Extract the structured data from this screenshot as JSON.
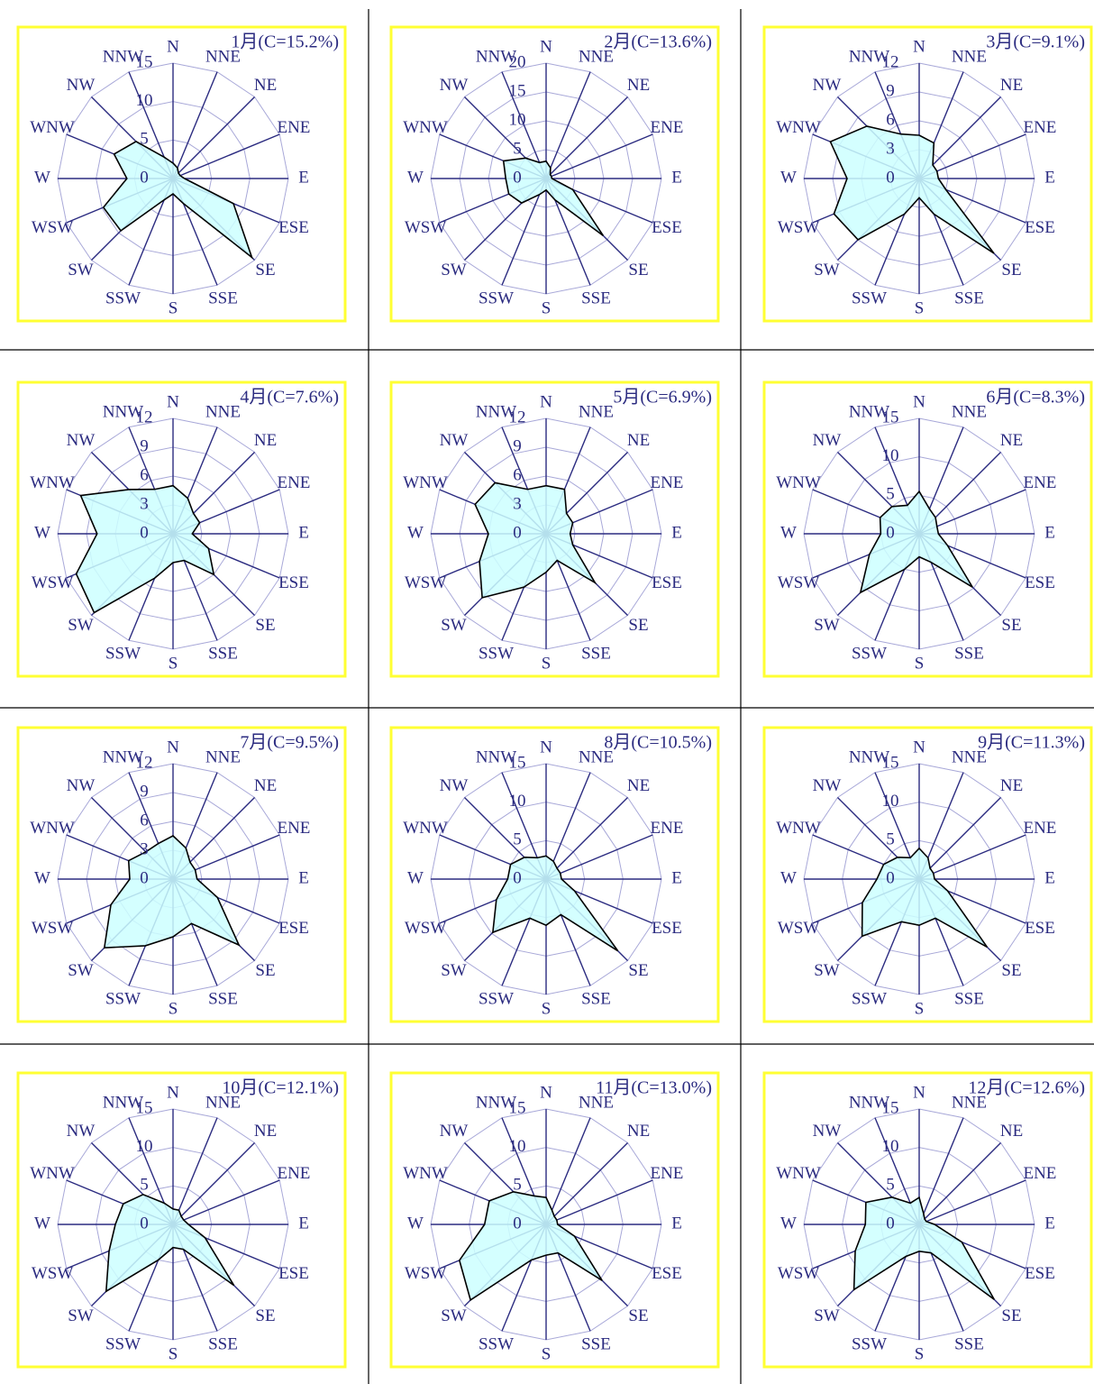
{
  "chart_data": [
    {
      "type": "radar",
      "title": "1月(C=15.2%)",
      "categories": [
        "N",
        "NNE",
        "NE",
        "ENE",
        "E",
        "ESE",
        "SE",
        "SSE",
        "S",
        "SSW",
        "SW",
        "WSW",
        "W",
        "WNW",
        "NW",
        "NNW"
      ],
      "values": [
        2,
        1.5,
        1,
        1,
        1.5,
        8.5,
        14.5,
        3.5,
        2,
        3,
        9.6,
        9.8,
        6,
        8.3,
        6.8,
        3
      ],
      "rlim": [
        0,
        15
      ],
      "rticks": [
        0,
        5,
        10,
        15
      ],
      "color": "#ccffff"
    },
    {
      "type": "radar",
      "title": "2月(C=13.6%)",
      "categories": [
        "N",
        "NNE",
        "NE",
        "ENE",
        "E",
        "ESE",
        "SE",
        "SSE",
        "S",
        "SSW",
        "SW",
        "WSW",
        "W",
        "WNW",
        "NW",
        "NNW"
      ],
      "values": [
        3,
        2,
        1,
        1,
        1,
        5,
        14,
        4,
        2,
        3,
        6,
        7,
        7,
        8,
        5,
        3
      ],
      "rlim": [
        0,
        20
      ],
      "rticks": [
        0,
        5,
        10,
        15,
        20
      ],
      "color": "#ccffff"
    },
    {
      "type": "radar",
      "title": "3月(C=9.1%)",
      "categories": [
        "N",
        "NNE",
        "NE",
        "ENE",
        "E",
        "ESE",
        "SE",
        "SSE",
        "S",
        "SSW",
        "SW",
        "WSW",
        "W",
        "WNW",
        "NW",
        "NNW"
      ],
      "values": [
        4.5,
        4,
        2,
        2,
        2,
        3,
        11,
        4,
        2,
        4,
        9,
        9.6,
        7.5,
        10,
        7.7,
        5
      ],
      "rlim": [
        0,
        12
      ],
      "rticks": [
        0,
        3,
        6,
        9,
        12
      ],
      "color": "#ccffff"
    },
    {
      "type": "radar",
      "title": "4月(C=7.6%)",
      "categories": [
        "N",
        "NNE",
        "NE",
        "ENE",
        "E",
        "ESE",
        "SE",
        "SSE",
        "S",
        "SSW",
        "SW",
        "WSW",
        "W",
        "WNW",
        "NW",
        "NNW"
      ],
      "values": [
        5,
        4,
        3,
        3,
        2,
        4,
        6,
        3,
        3,
        5,
        11.6,
        10.9,
        7.9,
        10.4,
        6.5,
        5
      ],
      "rlim": [
        0,
        12
      ],
      "rticks": [
        0,
        3,
        6,
        9,
        12
      ],
      "color": "#ccffff"
    },
    {
      "type": "radar",
      "title": "5月(C=6.9%)",
      "categories": [
        "N",
        "NNE",
        "NE",
        "ENE",
        "E",
        "ESE",
        "SE",
        "SSE",
        "S",
        "SSW",
        "SW",
        "WSW",
        "W",
        "WNW",
        "NW",
        "NNW"
      ],
      "values": [
        5,
        5,
        3,
        3,
        2.5,
        3,
        7.2,
        3,
        4,
        6,
        9.4,
        7.5,
        6,
        8,
        7.5,
        5
      ],
      "rlim": [
        0,
        12
      ],
      "rticks": [
        0,
        3,
        6,
        9,
        12
      ],
      "color": "#ccffff"
    },
    {
      "type": "radar",
      "title": "6月(C=8.3%)",
      "categories": [
        "N",
        "NNE",
        "NE",
        "ENE",
        "E",
        "ESE",
        "SE",
        "SSE",
        "S",
        "SSW",
        "SW",
        "WSW",
        "W",
        "WNW",
        "NW",
        "NNW"
      ],
      "values": [
        5.5,
        3.5,
        3,
        2.5,
        2.5,
        4,
        9.8,
        4,
        3,
        5,
        10.8,
        7,
        5,
        5.5,
        5,
        4
      ],
      "rlim": [
        0,
        15
      ],
      "rticks": [
        0,
        5,
        10,
        15
      ],
      "color": "#ccffff"
    },
    {
      "type": "radar",
      "title": "7月(C=9.5%)",
      "categories": [
        "N",
        "NNE",
        "NE",
        "ENE",
        "E",
        "ESE",
        "SE",
        "SSE",
        "S",
        "SSW",
        "SW",
        "WSW",
        "W",
        "WNW",
        "NW",
        "NNW"
      ],
      "values": [
        4.5,
        3.5,
        2.5,
        2.5,
        2.5,
        5,
        9.7,
        5,
        6,
        7.5,
        10.1,
        7,
        4.5,
        5,
        4,
        4
      ],
      "rlim": [
        0,
        12
      ],
      "rticks": [
        0,
        3,
        6,
        9,
        12
      ],
      "color": "#ccffff"
    },
    {
      "type": "radar",
      "title": "8月(C=10.5%)",
      "categories": [
        "N",
        "NNE",
        "NE",
        "ENE",
        "E",
        "ESE",
        "SE",
        "SSE",
        "S",
        "SSW",
        "SW",
        "WSW",
        "W",
        "WNW",
        "NW",
        "NNW"
      ],
      "values": [
        3,
        2.5,
        2,
        2,
        2,
        4,
        13.2,
        5,
        6,
        5.5,
        9.8,
        7,
        5,
        5,
        4,
        3
      ],
      "rlim": [
        0,
        15
      ],
      "rticks": [
        0,
        5,
        10,
        15
      ],
      "color": "#ccffff"
    },
    {
      "type": "radar",
      "title": "9月(C=11.3%)",
      "categories": [
        "N",
        "NNE",
        "NE",
        "ENE",
        "E",
        "ESE",
        "SE",
        "SSE",
        "S",
        "SSW",
        "SW",
        "WSW",
        "W",
        "WNW",
        "NW",
        "NNW"
      ],
      "values": [
        4,
        3,
        2,
        2,
        2,
        4,
        12.5,
        5.5,
        6,
        6,
        10.5,
        8,
        5.5,
        5,
        4,
        3
      ],
      "rlim": [
        0,
        15
      ],
      "rticks": [
        0,
        5,
        10,
        15
      ],
      "color": "#ccffff"
    },
    {
      "type": "radar",
      "title": "10月(C=12.1%)",
      "categories": [
        "N",
        "NNE",
        "NE",
        "ENE",
        "E",
        "ESE",
        "SE",
        "SSE",
        "S",
        "SSW",
        "SW",
        "WSW",
        "W",
        "WNW",
        "NW",
        "NNW"
      ],
      "values": [
        2,
        2,
        1.5,
        1.5,
        2,
        4.5,
        11.2,
        3.5,
        3,
        5,
        12.3,
        9,
        7.5,
        7,
        5.5,
        3
      ],
      "rlim": [
        0,
        15
      ],
      "rticks": [
        0,
        5,
        10,
        15
      ],
      "color": "#ccffff"
    },
    {
      "type": "radar",
      "title": "11月(C=13.0%)",
      "categories": [
        "N",
        "NNE",
        "NE",
        "ENE",
        "E",
        "ESE",
        "SE",
        "SSE",
        "S",
        "SSW",
        "SW",
        "WSW",
        "W",
        "WNW",
        "NW",
        "NNW"
      ],
      "values": [
        3.5,
        2,
        1.5,
        1.5,
        1.5,
        4,
        10.3,
        4,
        4,
        5,
        13.9,
        12.2,
        8,
        8,
        6,
        4
      ],
      "rlim": [
        0,
        15
      ],
      "rticks": [
        0,
        5,
        10,
        15
      ],
      "color": "#ccffff"
    },
    {
      "type": "radar",
      "title": "12月(C=12.6%)",
      "categories": [
        "N",
        "NNE",
        "NE",
        "ENE",
        "E",
        "ESE",
        "SE",
        "SSE",
        "S",
        "SSW",
        "SW",
        "WSW",
        "W",
        "WNW",
        "NW",
        "NNW"
      ],
      "values": [
        3.5,
        1.5,
        1,
        1,
        2,
        6,
        13.8,
        4,
        3.5,
        4.5,
        12,
        9,
        7,
        7.5,
        5,
        3
      ],
      "rlim": [
        0,
        15
      ],
      "rticks": [
        0,
        5,
        10,
        15
      ],
      "color": "#ccffff"
    }
  ]
}
